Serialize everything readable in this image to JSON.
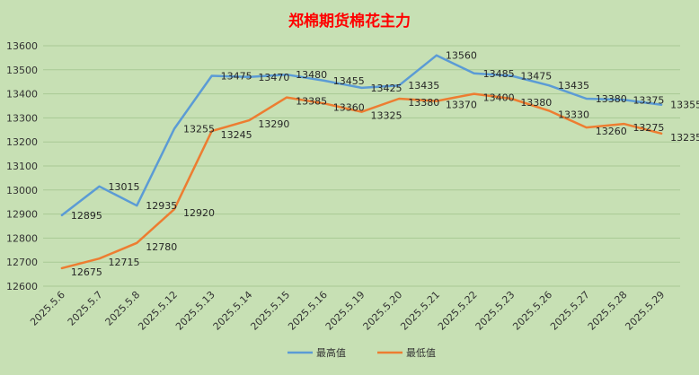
{
  "chart_data": {
    "type": "line",
    "title": "郑棉期货棉花主力",
    "categories": [
      "2025.5.6",
      "2025.5.7",
      "2025.5.8",
      "2025.5.12",
      "2025.5.13",
      "2025.5.14",
      "2025.5.15",
      "2025.5.16",
      "2025.5.19",
      "2025.5.20",
      "2025.5.21",
      "2025.5.22",
      "2025.5.23",
      "2025.5.26",
      "2025.5.27",
      "2025.5.28",
      "2025.5.29"
    ],
    "series": [
      {
        "name": "最高值",
        "color": "#5b9bd5",
        "values": [
          12895,
          13015,
          12935,
          13255,
          13475,
          13470,
          13480,
          13455,
          13425,
          13435,
          13560,
          13485,
          13475,
          13435,
          13380,
          13375,
          13355
        ]
      },
      {
        "name": "最低值",
        "color": "#ed7d31",
        "values": [
          12675,
          12715,
          12780,
          12920,
          13245,
          13290,
          13385,
          13360,
          13325,
          13380,
          13370,
          13400,
          13380,
          13330,
          13260,
          13275,
          13235
        ]
      }
    ],
    "ylim": [
      12600,
      13600
    ],
    "ystep": 100,
    "yticks": [
      12600,
      12700,
      12800,
      12900,
      13000,
      13100,
      13200,
      13300,
      13400,
      13500,
      13600
    ],
    "grid": true,
    "legend": "bottom",
    "xlabel": "",
    "ylabel": ""
  }
}
